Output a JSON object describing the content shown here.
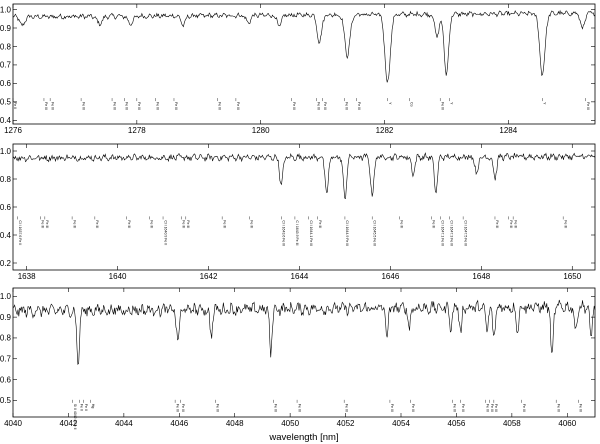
{
  "chart_data": [
    {
      "type": "line",
      "xlim": [
        1276,
        1285.4
      ],
      "ylim": [
        0.38,
        1.03
      ],
      "x_ticks": [
        1276,
        1278,
        1280,
        1282,
        1284
      ],
      "y_ticks": [
        0.4,
        0.5,
        0.6,
        0.7,
        0.8,
        0.9,
        1.0
      ],
      "continuum": [
        0.96,
        0.98
      ],
      "absorption_lines": [
        {
          "center": 1276.15,
          "depth": 0.05,
          "width": 0.05
        },
        {
          "center": 1277.4,
          "depth": 0.04,
          "width": 0.06
        },
        {
          "center": 1277.9,
          "depth": 0.04,
          "width": 0.06
        },
        {
          "center": 1278.75,
          "depth": 0.05,
          "width": 0.05
        },
        {
          "center": 1279.8,
          "depth": 0.04,
          "width": 0.05
        },
        {
          "center": 1280.3,
          "depth": 0.06,
          "width": 0.05
        },
        {
          "center": 1280.95,
          "depth": 0.15,
          "width": 0.05
        },
        {
          "center": 1281.4,
          "depth": 0.22,
          "width": 0.06
        },
        {
          "center": 1282.05,
          "depth": 0.37,
          "width": 0.06
        },
        {
          "center": 1282.85,
          "depth": 0.12,
          "width": 0.05
        },
        {
          "center": 1283.0,
          "depth": 0.33,
          "width": 0.05
        },
        {
          "center": 1284.55,
          "depth": 0.33,
          "width": 0.06
        },
        {
          "center": 1285.2,
          "depth": 0.08,
          "width": 0.05
        }
      ],
      "line_ids": [
        {
          "x": 1276.0,
          "label": "Fe II"
        },
        {
          "x": 1276.5,
          "label": "Fe III"
        },
        {
          "x": 1276.6,
          "label": "Fe III"
        },
        {
          "x": 1277.1,
          "label": "Fe III"
        },
        {
          "x": 1277.6,
          "label": "Fe III"
        },
        {
          "x": 1277.8,
          "label": "Fe III"
        },
        {
          "x": 1278.0,
          "label": "Fe III"
        },
        {
          "x": 1278.3,
          "label": "Fe III"
        },
        {
          "x": 1278.6,
          "label": "Fe III"
        },
        {
          "x": 1279.3,
          "label": "Fe III"
        },
        {
          "x": 1279.6,
          "label": "Fe III"
        },
        {
          "x": 1280.5,
          "label": "Fe III"
        },
        {
          "x": 1280.9,
          "label": "Fe III"
        },
        {
          "x": 1281.0,
          "label": "Fe III"
        },
        {
          "x": 1281.35,
          "label": "Fe III"
        },
        {
          "x": 1281.55,
          "label": "Fe III"
        },
        {
          "x": 1282.05,
          "label": "Y"
        },
        {
          "x": 1282.4,
          "label": "Co"
        },
        {
          "x": 1282.9,
          "label": "Fe III"
        },
        {
          "x": 1283.05,
          "label": "Y"
        },
        {
          "x": 1284.55,
          "label": "Y"
        },
        {
          "x": 1285.25,
          "label": "Fe III"
        }
      ]
    },
    {
      "type": "line",
      "xlim": [
        1637.7,
        1650.5
      ],
      "ylim": [
        0.15,
        1.05
      ],
      "x_ticks": [
        1638,
        1640,
        1642,
        1644,
        1646,
        1648,
        1650
      ],
      "y_ticks": [
        0.2,
        0.4,
        0.6,
        0.8,
        1.0
      ],
      "continuum": [
        0.95,
        0.96
      ],
      "absorption_lines": [
        {
          "center": 1643.6,
          "depth": 0.2,
          "width": 0.05
        },
        {
          "center": 1644.6,
          "depth": 0.27,
          "width": 0.05
        },
        {
          "center": 1645.0,
          "depth": 0.3,
          "width": 0.05
        },
        {
          "center": 1645.6,
          "depth": 0.28,
          "width": 0.05
        },
        {
          "center": 1646.5,
          "depth": 0.12,
          "width": 0.05
        },
        {
          "center": 1647.0,
          "depth": 0.25,
          "width": 0.05
        },
        {
          "center": 1647.9,
          "depth": 0.12,
          "width": 0.05
        },
        {
          "center": 1648.3,
          "depth": 0.15,
          "width": 0.05
        }
      ],
      "line_ids": [
        {
          "x": 1637.8,
          "label": "Cl I 1637.6 Fe II"
        },
        {
          "x": 1638.3,
          "label": "Fe III"
        },
        {
          "x": 1638.4,
          "label": "Fe III"
        },
        {
          "x": 1639.0,
          "label": "Fe III"
        },
        {
          "x": 1639.5,
          "label": "Fe III"
        },
        {
          "x": 1640.2,
          "label": "Fe III"
        },
        {
          "x": 1640.7,
          "label": "Fe III"
        },
        {
          "x": 1641.0,
          "label": "Cl I 1640.9 Fe II"
        },
        {
          "x": 1641.4,
          "label": "Fe III"
        },
        {
          "x": 1641.5,
          "label": "Fe III"
        },
        {
          "x": 1642.3,
          "label": "Fe III"
        },
        {
          "x": 1642.9,
          "label": "Fe III"
        },
        {
          "x": 1643.6,
          "label": "Cl I 1643.6 Fe III"
        },
        {
          "x": 1643.9,
          "label": "C I 1643.9 Fe III"
        },
        {
          "x": 1644.2,
          "label": "Cl I 1644.1 Fe III"
        },
        {
          "x": 1644.4,
          "label": "Fe III"
        },
        {
          "x": 1645.0,
          "label": "Cl I 1644.9 Fe III"
        },
        {
          "x": 1645.6,
          "label": "Cl I 1645.5 Fe III"
        },
        {
          "x": 1646.2,
          "label": "Fe III"
        },
        {
          "x": 1646.9,
          "label": "Fe III"
        },
        {
          "x": 1647.1,
          "label": "Cl I 1647.1 Fe III"
        },
        {
          "x": 1647.3,
          "label": "Cl I 1647.3 Fe III"
        },
        {
          "x": 1647.6,
          "label": "Cl I 1647.5 Fe III"
        },
        {
          "x": 1648.3,
          "label": "Fe III"
        },
        {
          "x": 1648.6,
          "label": "Fe III"
        },
        {
          "x": 1648.7,
          "label": "Fe III"
        },
        {
          "x": 1649.8,
          "label": "Fe III"
        }
      ]
    },
    {
      "type": "line",
      "xlim": [
        4040,
        4061
      ],
      "ylim": [
        0.42,
        1.04
      ],
      "x_ticks": [
        4040,
        4042,
        4044,
        4046,
        4048,
        4050,
        4052,
        4054,
        4056,
        4058,
        4060
      ],
      "y_ticks": [
        0.5,
        0.6,
        0.7,
        0.8,
        0.9,
        1.0
      ],
      "continuum": [
        0.93,
        0.95
      ],
      "absorption_lines": [
        {
          "center": 4042.35,
          "depth": 0.25,
          "width": 0.07
        },
        {
          "center": 4045.95,
          "depth": 0.16,
          "width": 0.07
        },
        {
          "center": 4047.15,
          "depth": 0.12,
          "width": 0.07
        },
        {
          "center": 4049.3,
          "depth": 0.22,
          "width": 0.06
        },
        {
          "center": 4053.5,
          "depth": 0.14,
          "width": 0.06
        },
        {
          "center": 4054.3,
          "depth": 0.1,
          "width": 0.06
        },
        {
          "center": 4055.8,
          "depth": 0.1,
          "width": 0.06
        },
        {
          "center": 4056.15,
          "depth": 0.12,
          "width": 0.06
        },
        {
          "center": 4057.1,
          "depth": 0.12,
          "width": 0.06
        },
        {
          "center": 4057.35,
          "depth": 0.16,
          "width": 0.06
        },
        {
          "center": 4058.2,
          "depth": 0.12,
          "width": 0.06
        },
        {
          "center": 4059.45,
          "depth": 0.26,
          "width": 0.06
        },
        {
          "center": 4060.3,
          "depth": 0.13,
          "width": 0.06
        },
        {
          "center": 4060.85,
          "depth": 0.15,
          "width": 0.06
        }
      ],
      "line_ids": [
        {
          "x": 4042.15,
          "label": "Si II 4042.0 Fe II"
        },
        {
          "x": 4042.4,
          "label": "Fe II"
        },
        {
          "x": 4042.55,
          "label": "Fe II"
        },
        {
          "x": 4042.8,
          "label": "Hg"
        },
        {
          "x": 4045.85,
          "label": "Fe III"
        },
        {
          "x": 4046.05,
          "label": "Fe III"
        },
        {
          "x": 4047.3,
          "label": "Fe III"
        },
        {
          "x": 4049.4,
          "label": "Fe III"
        },
        {
          "x": 4050.25,
          "label": "Fe III"
        },
        {
          "x": 4051.95,
          "label": "Fe III"
        },
        {
          "x": 4053.6,
          "label": "Fe III"
        },
        {
          "x": 4054.35,
          "label": "Fe III"
        },
        {
          "x": 4055.85,
          "label": "Fe III"
        },
        {
          "x": 4056.15,
          "label": "Fe III"
        },
        {
          "x": 4057.05,
          "label": "Fe III"
        },
        {
          "x": 4057.2,
          "label": "Fe III"
        },
        {
          "x": 4057.35,
          "label": "Fe III"
        },
        {
          "x": 4058.35,
          "label": "Fe III"
        },
        {
          "x": 4059.6,
          "label": "Fe III"
        },
        {
          "x": 4060.4,
          "label": "Fe III"
        }
      ]
    }
  ],
  "xlabel": "wavelength [nm]"
}
